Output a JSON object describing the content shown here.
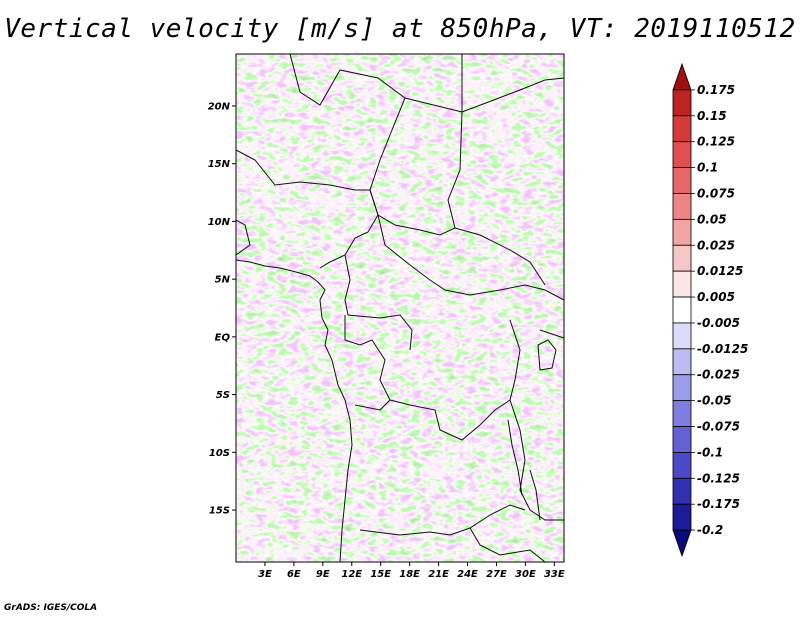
{
  "title": "Vertical velocity [m/s] at 850hPa, VT: 2019110512",
  "credit": "GrADS: IGES/COLA",
  "map": {
    "variable": "vertical velocity",
    "level": "850hPa",
    "lat_range": [
      -19.5,
      24.5
    ],
    "lon_range": [
      0,
      34
    ],
    "lat_ticks": [
      {
        "value": 20,
        "label": "20N"
      },
      {
        "value": 15,
        "label": "15N"
      },
      {
        "value": 10,
        "label": "10N"
      },
      {
        "value": 5,
        "label": "5N"
      },
      {
        "value": 0,
        "label": "EQ"
      },
      {
        "value": -5,
        "label": "5S"
      },
      {
        "value": -10,
        "label": "10S"
      },
      {
        "value": -15,
        "label": "15S"
      }
    ],
    "lon_ticks": [
      {
        "value": 3,
        "label": "3E"
      },
      {
        "value": 6,
        "label": "6E"
      },
      {
        "value": 9,
        "label": "9E"
      },
      {
        "value": 12,
        "label": "12E"
      },
      {
        "value": 15,
        "label": "15E"
      },
      {
        "value": 18,
        "label": "18E"
      },
      {
        "value": 21,
        "label": "21E"
      },
      {
        "value": 24,
        "label": "24E"
      },
      {
        "value": 27,
        "label": "27E"
      },
      {
        "value": 30,
        "label": "30E"
      },
      {
        "value": 33,
        "label": "33E"
      }
    ]
  },
  "colorbar": {
    "labels": [
      "0.175",
      "0.15",
      "0.125",
      "0.1",
      "0.075",
      "0.05",
      "0.025",
      "0.0125",
      "0.005",
      "-0.005",
      "-0.0125",
      "-0.025",
      "-0.05",
      "-0.075",
      "-0.1",
      "-0.125",
      "-0.175",
      "-0.2"
    ],
    "colors": [
      "#a01010",
      "#be2222",
      "#d43a3a",
      "#e05050",
      "#e66868",
      "#ec8585",
      "#f2a5a5",
      "#f7c7c7",
      "#fbe6e6",
      "#ffffff",
      "#dcdcfa",
      "#bcbcf2",
      "#9c9cea",
      "#7e7ee0",
      "#6262d4",
      "#4a4ac6",
      "#3030b0",
      "#1c1c96",
      "#0a0a7a"
    ]
  }
}
